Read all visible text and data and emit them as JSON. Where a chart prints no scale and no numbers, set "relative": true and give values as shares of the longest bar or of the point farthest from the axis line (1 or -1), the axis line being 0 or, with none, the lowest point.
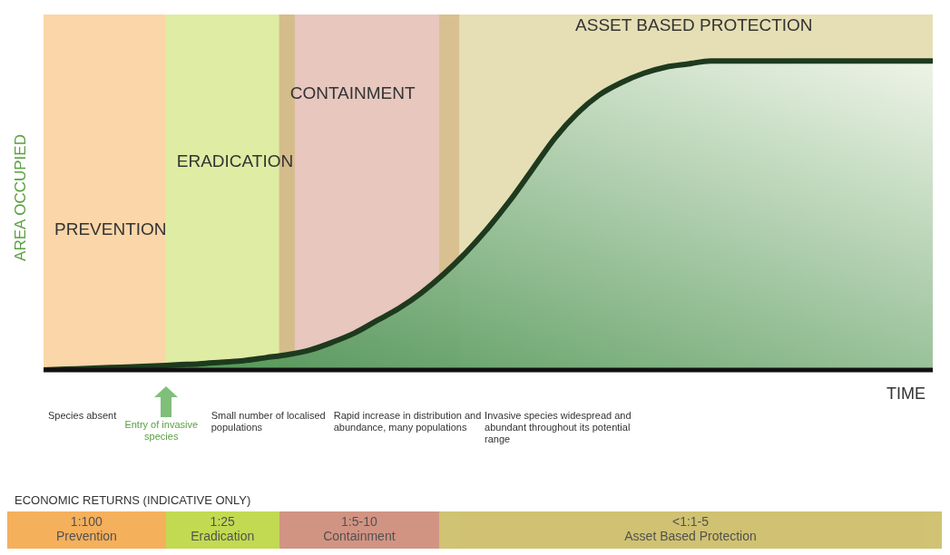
{
  "chart_data": {
    "type": "area",
    "relative": true,
    "ylabel": "AREA OCCUPIED",
    "xlabel": "TIME",
    "categories": [
      null,
      null,
      null,
      null,
      null,
      null,
      null,
      null,
      null,
      null,
      null,
      null,
      null,
      null,
      null,
      null,
      null,
      null,
      null,
      null,
      null,
      null,
      null,
      null,
      null,
      null,
      null,
      null,
      null,
      null,
      null,
      null,
      null,
      null,
      null,
      null,
      null,
      null,
      null,
      null,
      null
    ],
    "series": [
      {
        "color": "#1e3a1e",
        "values": [
          0,
          0.003,
          0.005,
          0.008,
          0.01,
          0.013,
          0.017,
          0.02,
          0.025,
          0.03,
          0.04,
          0.05,
          0.065,
          0.09,
          0.12,
          0.16,
          0.2,
          0.25,
          0.31,
          0.38,
          0.46,
          0.55,
          0.65,
          0.75,
          0.83,
          0.89,
          0.93,
          0.96,
          0.98,
          0.99,
          1,
          1,
          1,
          1,
          1,
          1,
          1,
          1,
          1,
          1,
          1
        ]
      }
    ],
    "annotations": [
      "Species absent",
      "Entry of invasive species",
      "Small number of localised populations",
      "Rapid increase in distribution and abundance, many populations",
      "Invasive species widespread and abundant throughout its potential range",
      "ECONOMIC RETURNS (INDICATIVE ONLY)",
      "1:100 Prevention",
      "1:25 Eradication",
      "1:5-10 Containment",
      "<1:1-5 Asset Based Protection",
      "PREVENTION",
      "ERADICATION",
      "CONTAINMENT",
      "ASSET BASED PROTECTION"
    ],
    "legend": false,
    "grid": false
  }
}
